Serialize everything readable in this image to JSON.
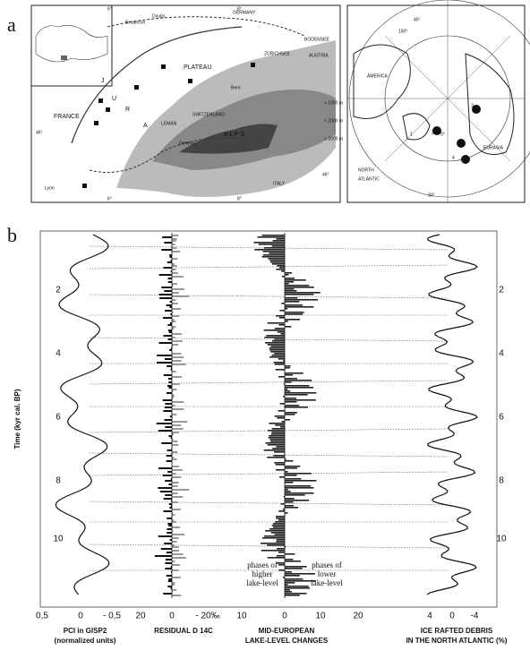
{
  "panel_a": {
    "label": "a",
    "map_alps": {
      "labels": [
        "Besancon",
        "Doubs",
        "GERMANY",
        "BODENSEE",
        "PLATEAU",
        "ZÜRICHSEE",
        "AUSTRIA",
        "Bern",
        "J",
        "U",
        "R",
        "A",
        "FRANCE",
        "LEMAN",
        "Geneva",
        "SWITZERLAND",
        "A L P S",
        "Lyon",
        "ITALY",
        "46°",
        "6°",
        "8°",
        "6°",
        "8°",
        "46°",
        "> 1000 m",
        "> 2000 m",
        "> 3000 m"
      ]
    },
    "map_arctic": {
      "labels": [
        "45°",
        "150°",
        "AMERICA",
        "EURASIA",
        "NORTH",
        "ATLANTIC",
        "30°",
        "0°",
        "1",
        "2",
        "3",
        "4"
      ]
    }
  },
  "panel_b": {
    "label": "b",
    "y_axis_label": "Time (kyr cal. BP)",
    "yticks": [
      "2",
      "4",
      "6",
      "8",
      "10"
    ],
    "columns": [
      {
        "title": [
          "PCI in GISP2",
          "(normalized units)"
        ],
        "ticks": [
          "0,5",
          "0",
          "- 0,5"
        ]
      },
      {
        "title": [
          "RESIDUAL  D 14C"
        ],
        "ticks": [
          "20",
          "0",
          "- 20‰"
        ]
      },
      {
        "title": [
          "MID-EUROPEAN",
          "LAKE-LEVEL CHANGES"
        ],
        "ticks": [
          "10",
          "0",
          "10",
          "20"
        ]
      },
      {
        "title": [
          "ICE RAFTED DEBRIS",
          "IN THE NORTH ATLANTIC (%)"
        ],
        "ticks": [
          "4",
          "0",
          "-4"
        ]
      }
    ],
    "annotations": [
      "phases of",
      "higher",
      "lake-level",
      "phases of",
      "lower",
      "lake-level"
    ]
  }
}
